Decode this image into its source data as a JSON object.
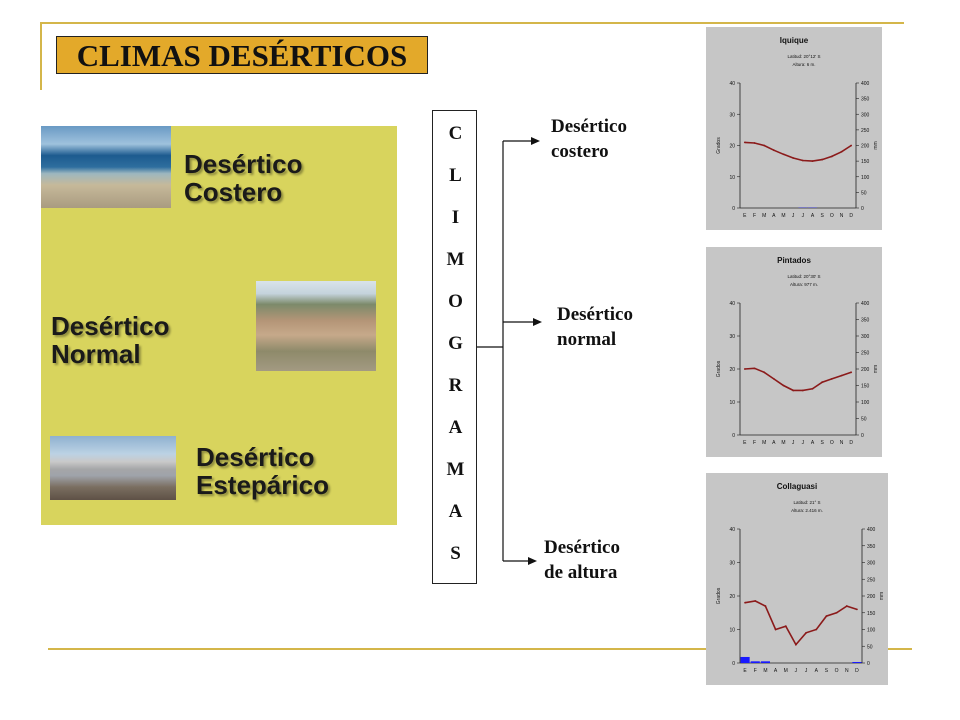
{
  "slide_title": "CLIMAS DESÉRTICOS",
  "panel": {
    "labels": [
      "Desértico\nCostero",
      "Desértico\nNormal",
      "Desértico\nEstepárico"
    ]
  },
  "vertical_word": [
    "C",
    "L",
    "I",
    "M",
    "O",
    "G",
    "R",
    "A",
    "M",
    "A",
    "S"
  ],
  "branches": [
    "Desértico\ncostero",
    "Desértico\nnormal",
    "Desértico\nde altura"
  ],
  "colors": {
    "accent": "#e3a92a",
    "panel": "#d8d45d",
    "rule": "#d4b64a",
    "temperature": "#8b1a1a",
    "precipitation": "#1a1aff",
    "chart_bg": "#c6c6c6"
  },
  "chart_data": [
    {
      "type": "line",
      "title": "Iquique",
      "subtitle": [
        "Latitud: 20°12' S",
        "Altura: 6 m."
      ],
      "months": [
        "E",
        "F",
        "M",
        "A",
        "M",
        "J",
        "J",
        "A",
        "S",
        "O",
        "N",
        "D"
      ],
      "ylabel": "Grados",
      "ylabel_right": "mm",
      "ylim": [
        0,
        40
      ],
      "y_ticks": [
        "0",
        "10",
        "20",
        "30",
        "40"
      ],
      "ylim_right": [
        0,
        400
      ],
      "y2_ticks": [
        "0",
        "50",
        "100",
        "150",
        "200",
        "250",
        "300",
        "350",
        "400"
      ],
      "series": [
        {
          "values": [
            21,
            20.8,
            20,
            18.5,
            17.2,
            16,
            15.2,
            15,
            15.5,
            16.5,
            18,
            20
          ]
        },
        {
          "values": [
            0,
            0,
            0,
            0,
            0,
            0,
            1,
            1,
            0,
            0,
            0,
            0
          ]
        }
      ]
    },
    {
      "type": "line",
      "title": "Pintados",
      "subtitle": [
        "Latitud: 20°30' S",
        "Altura: 977 m."
      ],
      "months": [
        "E",
        "F",
        "M",
        "A",
        "M",
        "J",
        "J",
        "A",
        "S",
        "O",
        "N",
        "D"
      ],
      "ylabel": "Grados",
      "ylabel_right": "mm",
      "ylim": [
        0,
        40
      ],
      "y_ticks": [
        "0",
        "10",
        "20",
        "30",
        "40"
      ],
      "ylim_right": [
        0,
        400
      ],
      "y2_ticks": [
        "0",
        "50",
        "100",
        "150",
        "200",
        "250",
        "300",
        "350",
        "400"
      ],
      "series": [
        {
          "values": [
            20,
            20.2,
            19,
            17,
            15,
            13.5,
            13.5,
            14,
            16,
            17,
            18,
            19
          ]
        },
        {
          "values": [
            0,
            0,
            0,
            0,
            0,
            0,
            0,
            0,
            0,
            0,
            0,
            0
          ]
        }
      ]
    },
    {
      "type": "line",
      "title": "Collaguasi",
      "subtitle": [
        "Latitud: 21° S",
        "Altura: 2.416 m."
      ],
      "months": [
        "E",
        "F",
        "M",
        "A",
        "M",
        "J",
        "J",
        "A",
        "S",
        "O",
        "N",
        "D"
      ],
      "ylabel": "Grados",
      "ylabel_right": "mm",
      "ylim": [
        0,
        40
      ],
      "y_ticks": [
        "0",
        "10",
        "20",
        "30",
        "40"
      ],
      "ylim_right": [
        0,
        400
      ],
      "y2_ticks": [
        "0",
        "50",
        "100",
        "150",
        "200",
        "250",
        "300",
        "350",
        "400"
      ],
      "series": [
        {
          "values": [
            18,
            18.5,
            17,
            10,
            11,
            5.5,
            9,
            10,
            14,
            15,
            17,
            16
          ]
        },
        {
          "values": [
            18,
            5,
            5,
            0,
            0,
            0,
            0,
            0,
            0,
            0,
            0,
            3
          ]
        }
      ]
    }
  ]
}
